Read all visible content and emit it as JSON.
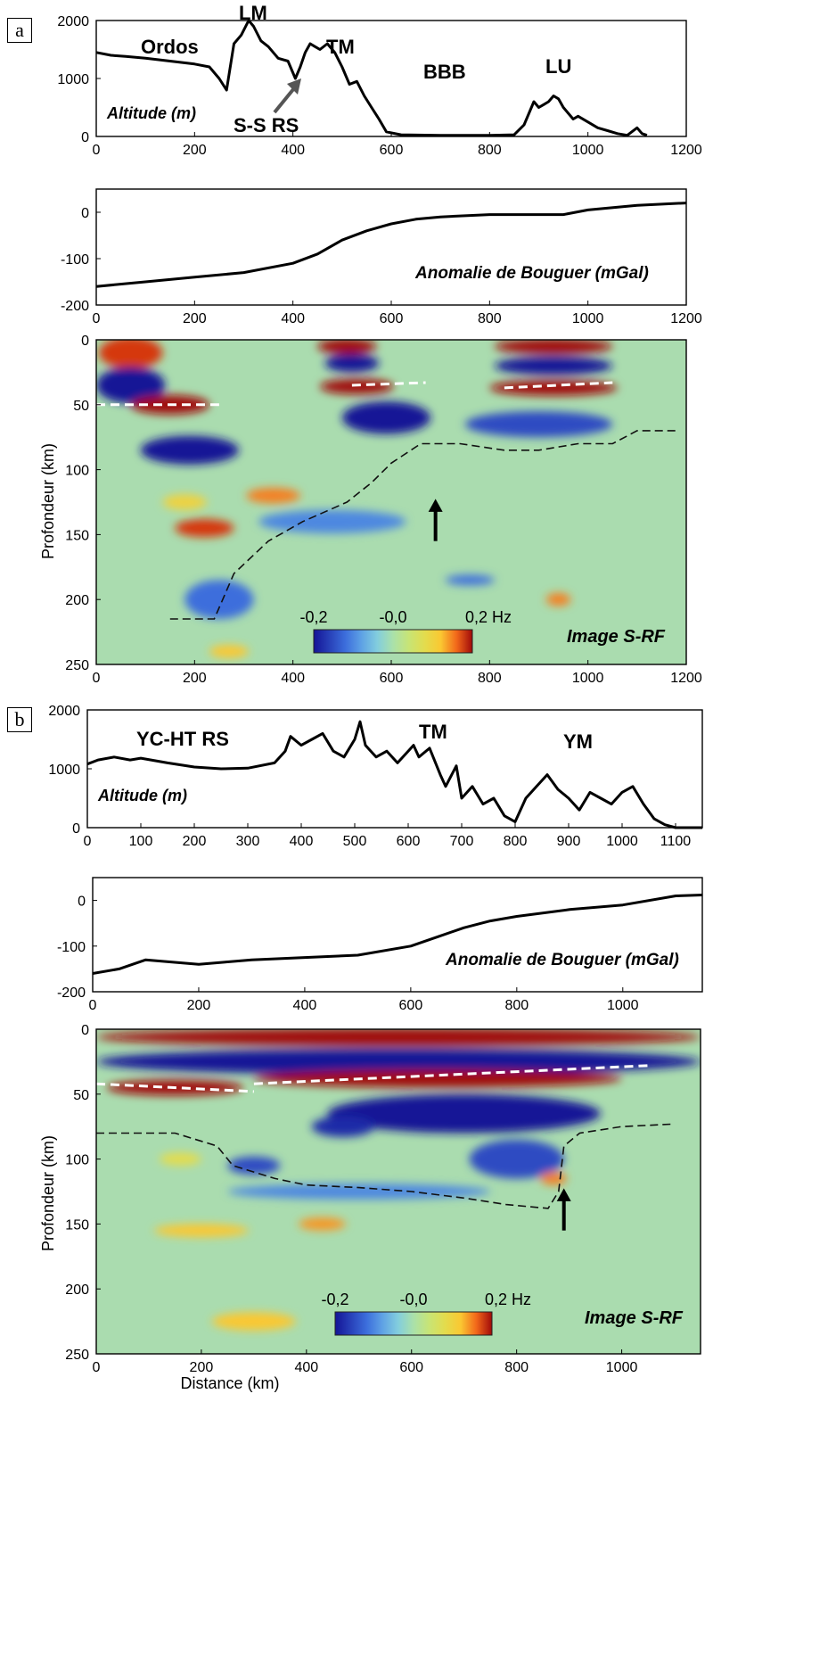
{
  "panels": [
    {
      "label": "a",
      "altitude": {
        "annotation": "Altitude (m)",
        "regions": [
          "Ordos",
          "LM",
          "TM",
          "BBB",
          "LU"
        ],
        "arrow_label": "S-S RS",
        "yticks": [
          0,
          1000,
          2000
        ],
        "xticks": [
          0,
          200,
          400,
          600,
          800,
          1000,
          1200
        ]
      },
      "gravity": {
        "annotation": "Anomalie de Bouguer (mGal)",
        "yticks": [
          -200,
          -100,
          0
        ],
        "xticks": [
          0,
          200,
          400,
          600,
          800,
          1000,
          1200
        ]
      },
      "srf": {
        "ylabel": "Profondeur (km)",
        "annotation": "Image S-RF",
        "colorbar_labels": [
          "-0,2",
          "-0,0",
          "0,2 Hz"
        ],
        "yticks": [
          0,
          50,
          100,
          150,
          200,
          250
        ],
        "xticks": [
          0,
          200,
          400,
          600,
          800,
          1000,
          1200
        ]
      }
    },
    {
      "label": "b",
      "altitude": {
        "annotation": "Altitude (m)",
        "regions": [
          "YC-HT RS",
          "TM",
          "YM"
        ],
        "yticks": [
          0,
          1000,
          2000
        ],
        "xticks": [
          0,
          100,
          200,
          300,
          400,
          500,
          600,
          700,
          800,
          900,
          1000,
          1100
        ]
      },
      "gravity": {
        "annotation": "Anomalie de Bouguer (mGal)",
        "yticks": [
          -200,
          -100,
          0
        ],
        "xticks": [
          0,
          200,
          400,
          600,
          800,
          1000
        ]
      },
      "srf": {
        "ylabel": "Profondeur (km)",
        "xlabel": "Distance (km)",
        "annotation": "Image S-RF",
        "colorbar_labels": [
          "-0,2",
          "-0,0",
          "0,2 Hz"
        ],
        "yticks": [
          0,
          50,
          100,
          150,
          200,
          250
        ],
        "xticks": [
          0,
          200,
          400,
          600,
          800,
          1000
        ]
      }
    }
  ],
  "chart_data": [
    {
      "type": "line",
      "panel": "a",
      "annotation": "Altitude (m)",
      "xlim": [
        0,
        1200
      ],
      "ylim": [
        0,
        2000
      ],
      "x": [
        0,
        30,
        60,
        100,
        150,
        200,
        230,
        250,
        265,
        280,
        295,
        310,
        320,
        335,
        350,
        370,
        390,
        405,
        415,
        425,
        435,
        445,
        455,
        470,
        485,
        500,
        515,
        530,
        545,
        560,
        575,
        590,
        620,
        700,
        800,
        850,
        870,
        880,
        890,
        900,
        910,
        920,
        930,
        940,
        950,
        960,
        970,
        980,
        1000,
        1020,
        1040,
        1060,
        1080,
        1100,
        1110,
        1120
      ],
      "y": [
        1450,
        1400,
        1380,
        1350,
        1300,
        1250,
        1200,
        1000,
        800,
        1600,
        1750,
        2000,
        1900,
        1650,
        1550,
        1350,
        1300,
        1000,
        1200,
        1450,
        1600,
        1550,
        1500,
        1600,
        1450,
        1200,
        900,
        950,
        700,
        500,
        300,
        80,
        30,
        20,
        20,
        30,
        200,
        400,
        600,
        500,
        550,
        600,
        700,
        650,
        500,
        400,
        300,
        350,
        250,
        150,
        100,
        50,
        20,
        150,
        50,
        20
      ]
    },
    {
      "type": "line",
      "panel": "a",
      "annotation": "Anomalie de Bouguer (mGal)",
      "xlim": [
        0,
        1200
      ],
      "ylim": [
        -200,
        50
      ],
      "x": [
        0,
        100,
        200,
        300,
        400,
        450,
        500,
        550,
        600,
        650,
        700,
        800,
        900,
        950,
        1000,
        1100,
        1200
      ],
      "y": [
        -160,
        -150,
        -140,
        -130,
        -110,
        -90,
        -60,
        -40,
        -25,
        -15,
        -10,
        -5,
        -5,
        -5,
        5,
        15,
        20
      ]
    },
    {
      "type": "heatmap",
      "panel": "a",
      "annotation": "Image S-RF",
      "colorbar": {
        "min": -0.2,
        "mid": 0.0,
        "max": 0.2,
        "unit": "Hz"
      },
      "xlim": [
        0,
        1200
      ],
      "ylim": [
        250,
        0
      ],
      "moho_white_dashed": [
        {
          "x": [
            0,
            250
          ],
          "y": [
            50,
            50
          ]
        },
        {
          "x": [
            520,
            670
          ],
          "y": [
            35,
            33
          ]
        },
        {
          "x": [
            830,
            1050
          ],
          "y": [
            37,
            33
          ]
        }
      ],
      "interface_black_dashed": {
        "x": [
          150,
          240,
          280,
          350,
          420,
          480,
          510,
          560,
          600,
          660,
          740,
          830,
          900,
          980,
          1050,
          1100,
          1180
        ],
        "y": [
          215,
          215,
          180,
          155,
          140,
          130,
          125,
          110,
          95,
          80,
          80,
          85,
          85,
          80,
          80,
          70,
          70
        ]
      },
      "arrow_x": 690,
      "anomaly_blobs": [
        {
          "x": 70,
          "y": 10,
          "w": 130,
          "h": 25,
          "value": 0.18
        },
        {
          "x": 70,
          "y": 35,
          "w": 140,
          "h": 28,
          "value": -0.2
        },
        {
          "x": 150,
          "y": 50,
          "w": 160,
          "h": 15,
          "value": 0.2
        },
        {
          "x": 190,
          "y": 85,
          "w": 200,
          "h": 22,
          "value": -0.2
        },
        {
          "x": 510,
          "y": 5,
          "w": 120,
          "h": 12,
          "value": 0.2
        },
        {
          "x": 520,
          "y": 18,
          "w": 110,
          "h": 14,
          "value": -0.2
        },
        {
          "x": 530,
          "y": 36,
          "w": 150,
          "h": 12,
          "value": 0.2
        },
        {
          "x": 590,
          "y": 60,
          "w": 180,
          "h": 25,
          "value": -0.2
        },
        {
          "x": 930,
          "y": 5,
          "w": 240,
          "h": 12,
          "value": 0.2
        },
        {
          "x": 930,
          "y": 20,
          "w": 240,
          "h": 14,
          "value": -0.2
        },
        {
          "x": 930,
          "y": 37,
          "w": 260,
          "h": 12,
          "value": 0.2
        },
        {
          "x": 900,
          "y": 65,
          "w": 300,
          "h": 20,
          "value": -0.15
        },
        {
          "x": 220,
          "y": 145,
          "w": 120,
          "h": 14,
          "value": 0.18
        },
        {
          "x": 360,
          "y": 120,
          "w": 110,
          "h": 12,
          "value": 0.15
        },
        {
          "x": 180,
          "y": 125,
          "w": 90,
          "h": 12,
          "value": 0.1
        },
        {
          "x": 480,
          "y": 140,
          "w": 300,
          "h": 18,
          "value": -0.1
        },
        {
          "x": 250,
          "y": 200,
          "w": 140,
          "h": 30,
          "value": -0.12
        },
        {
          "x": 760,
          "y": 185,
          "w": 100,
          "h": 8,
          "value": -0.12
        },
        {
          "x": 940,
          "y": 200,
          "w": 50,
          "h": 10,
          "value": 0.15
        },
        {
          "x": 270,
          "y": 240,
          "w": 80,
          "h": 10,
          "value": 0.12
        }
      ]
    },
    {
      "type": "line",
      "panel": "b",
      "annotation": "Altitude (m)",
      "xlim": [
        0,
        1150
      ],
      "ylim": [
        0,
        2000
      ],
      "x": [
        0,
        20,
        50,
        80,
        100,
        150,
        200,
        250,
        300,
        350,
        370,
        380,
        400,
        420,
        440,
        460,
        480,
        500,
        510,
        520,
        540,
        560,
        580,
        600,
        610,
        620,
        640,
        660,
        670,
        690,
        700,
        720,
        740,
        760,
        780,
        800,
        820,
        840,
        860,
        880,
        900,
        920,
        940,
        960,
        980,
        1000,
        1020,
        1040,
        1060,
        1080,
        1100,
        1150
      ],
      "y": [
        1080,
        1150,
        1200,
        1150,
        1180,
        1100,
        1030,
        1000,
        1010,
        1100,
        1300,
        1550,
        1400,
        1500,
        1600,
        1300,
        1200,
        1500,
        1800,
        1400,
        1200,
        1300,
        1100,
        1300,
        1400,
        1200,
        1350,
        900,
        700,
        1050,
        500,
        700,
        400,
        500,
        200,
        100,
        500,
        700,
        900,
        650,
        500,
        300,
        600,
        500,
        400,
        600,
        700,
        400,
        150,
        50,
        0,
        0
      ]
    },
    {
      "type": "line",
      "panel": "b",
      "annotation": "Anomalie de Bouguer (mGal)",
      "xlim": [
        0,
        1150
      ],
      "ylim": [
        -200,
        50
      ],
      "x": [
        0,
        50,
        100,
        150,
        200,
        250,
        300,
        400,
        500,
        600,
        650,
        700,
        750,
        800,
        900,
        1000,
        1100,
        1150
      ],
      "y": [
        -160,
        -150,
        -130,
        -135,
        -140,
        -135,
        -130,
        -125,
        -120,
        -100,
        -80,
        -60,
        -45,
        -35,
        -20,
        -10,
        10,
        12
      ]
    },
    {
      "type": "heatmap",
      "panel": "b",
      "annotation": "Image S-RF",
      "colorbar": {
        "min": -0.2,
        "mid": 0.0,
        "max": 0.2,
        "unit": "Hz"
      },
      "xlim": [
        0,
        1150
      ],
      "ylim": [
        250,
        0
      ],
      "moho_white_dashed": [
        {
          "x": [
            0,
            300
          ],
          "y": [
            42,
            48
          ]
        },
        {
          "x": [
            300,
            1050
          ],
          "y": [
            42,
            28
          ]
        }
      ],
      "interface_black_dashed": {
        "x": [
          0,
          150,
          230,
          260,
          340,
          400,
          500,
          600,
          700,
          780,
          860,
          880,
          890,
          920,
          1000,
          1100
        ],
        "y": [
          80,
          80,
          90,
          105,
          115,
          120,
          122,
          125,
          130,
          135,
          138,
          125,
          90,
          80,
          75,
          73
        ]
      },
      "arrow_x": 890,
      "anomaly_blobs": [
        {
          "x": 575,
          "y": 6,
          "w": 1150,
          "h": 14,
          "value": 0.2
        },
        {
          "x": 575,
          "y": 25,
          "w": 1150,
          "h": 20,
          "value": -0.2
        },
        {
          "x": 150,
          "y": 45,
          "w": 260,
          "h": 12,
          "value": 0.2
        },
        {
          "x": 650,
          "y": 38,
          "w": 700,
          "h": 14,
          "value": 0.2
        },
        {
          "x": 700,
          "y": 65,
          "w": 520,
          "h": 30,
          "value": -0.2
        },
        {
          "x": 470,
          "y": 75,
          "w": 120,
          "h": 16,
          "value": -0.18
        },
        {
          "x": 800,
          "y": 100,
          "w": 180,
          "h": 30,
          "value": -0.15
        },
        {
          "x": 300,
          "y": 105,
          "w": 100,
          "h": 14,
          "value": -0.15
        },
        {
          "x": 500,
          "y": 125,
          "w": 500,
          "h": 12,
          "value": -0.1
        },
        {
          "x": 200,
          "y": 155,
          "w": 180,
          "h": 10,
          "value": 0.12
        },
        {
          "x": 430,
          "y": 150,
          "w": 90,
          "h": 10,
          "value": 0.14
        },
        {
          "x": 870,
          "y": 115,
          "w": 50,
          "h": 10,
          "value": 0.15
        },
        {
          "x": 300,
          "y": 225,
          "w": 160,
          "h": 14,
          "value": 0.12
        },
        {
          "x": 160,
          "y": 100,
          "w": 80,
          "h": 10,
          "value": 0.08
        }
      ]
    }
  ]
}
